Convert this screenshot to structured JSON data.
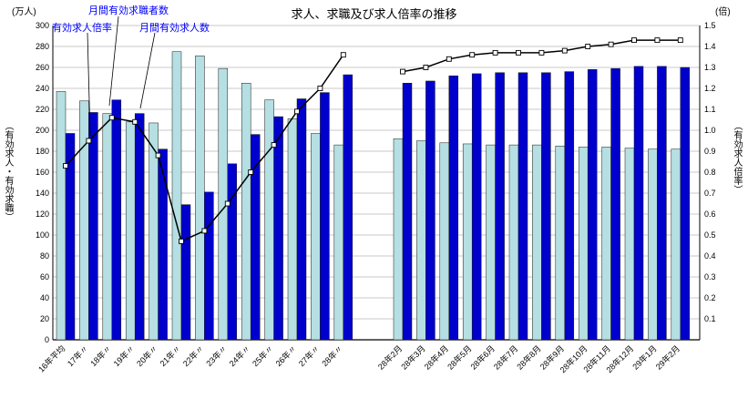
{
  "page": {
    "title": "求人、求職及び求人倍率の推移",
    "left_axis_unit": "(万人)",
    "right_axis_unit": "(倍)",
    "left_axis_label": "（有効求人・有効求職）",
    "right_axis_label": "（有効求人倍率）"
  },
  "legend": {
    "seekers": "月間有効求職者数",
    "ratio": "有効求人倍率",
    "openings": "月間有効求人数",
    "text_color": "#0000ff"
  },
  "colors": {
    "seekers_bar": "#b5dfe2",
    "openings_bar": "#0000cd",
    "ratio_line": "#000000",
    "marker_fill": "#ffffff",
    "gridline": "#b8b8b8",
    "axis": "#000000"
  },
  "chart_data": {
    "type": "bar",
    "subtype": "grouped-bars-with-line-overlay, dual y-axis, two panels (annual averages / recent months)",
    "title": "求人、求職及び求人倍率の推移",
    "grid": true,
    "legend_position": "top-left annotations with pointer lines",
    "left_axis": {
      "label": "（有効求人・有効求職）",
      "unit": "(万人)",
      "min": 0,
      "max": 300,
      "step": 20,
      "tick_labels": [
        "0",
        "20",
        "40",
        "60",
        "80",
        "100",
        "120",
        "140",
        "160",
        "180",
        "200",
        "220",
        "240",
        "260",
        "280",
        "300"
      ]
    },
    "right_axis": {
      "label": "（有効求人倍率）",
      "unit": "(倍)",
      "min": 0,
      "max": 1.5,
      "step": 0.1,
      "tick_labels": [
        "0.1",
        "0.2",
        "0.3",
        "0.4",
        "0.5",
        "0.6",
        "0.7",
        "0.8",
        "0.9",
        "1.0",
        "1.1",
        "1.2",
        "1.3",
        "1.4",
        "1.5"
      ]
    },
    "groups": [
      {
        "name": "annual-averages",
        "categories": [
          "16年平均",
          "17年〃",
          "18年〃",
          "19年〃",
          "20年〃",
          "21年〃",
          "22年〃",
          "23年〃",
          "24年〃",
          "25年〃",
          "26年〃",
          "27年〃",
          "28年〃"
        ],
        "series": [
          {
            "name": "月間有効求職者数",
            "type": "bar",
            "axis": "left",
            "color": "#b5dfe2",
            "values": [
              237,
              228,
              216,
              208,
              207,
              275,
              271,
              259,
              245,
              229,
              211,
              197,
              186
            ]
          },
          {
            "name": "月間有効求人数",
            "type": "bar",
            "axis": "left",
            "color": "#0000cd",
            "values": [
              197,
              217,
              229,
              216,
              182,
              129,
              141,
              168,
              196,
              213,
              230,
              236,
              253
            ]
          },
          {
            "name": "有効求人倍率",
            "type": "line",
            "axis": "right",
            "color": "#000000",
            "values": [
              0.83,
              0.95,
              1.06,
              1.04,
              0.88,
              0.47,
              0.52,
              0.65,
              0.8,
              0.93,
              1.09,
              1.2,
              1.36
            ]
          }
        ]
      },
      {
        "name": "recent-months",
        "categories": [
          "28年2月",
          "28年3月",
          "28年4月",
          "28年5月",
          "28年6月",
          "28年7月",
          "28年8月",
          "28年9月",
          "28年10月",
          "28年11月",
          "28年12月",
          "29年1月",
          "29年2月"
        ],
        "series": [
          {
            "name": "月間有効求職者数",
            "type": "bar",
            "axis": "left",
            "color": "#b5dfe2",
            "values": [
              192,
              190,
              188,
              187,
              186,
              186,
              186,
              185,
              184,
              184,
              183,
              182,
              182
            ]
          },
          {
            "name": "月間有効求人数",
            "type": "bar",
            "axis": "left",
            "color": "#0000cd",
            "values": [
              245,
              247,
              252,
              254,
              255,
              255,
              255,
              256,
              258,
              259,
              261,
              261,
              260
            ]
          },
          {
            "name": "有効求人倍率",
            "type": "line",
            "axis": "right",
            "color": "#000000",
            "values": [
              1.28,
              1.3,
              1.34,
              1.36,
              1.37,
              1.37,
              1.37,
              1.38,
              1.4,
              1.41,
              1.43,
              1.43,
              1.43
            ]
          }
        ]
      }
    ]
  }
}
